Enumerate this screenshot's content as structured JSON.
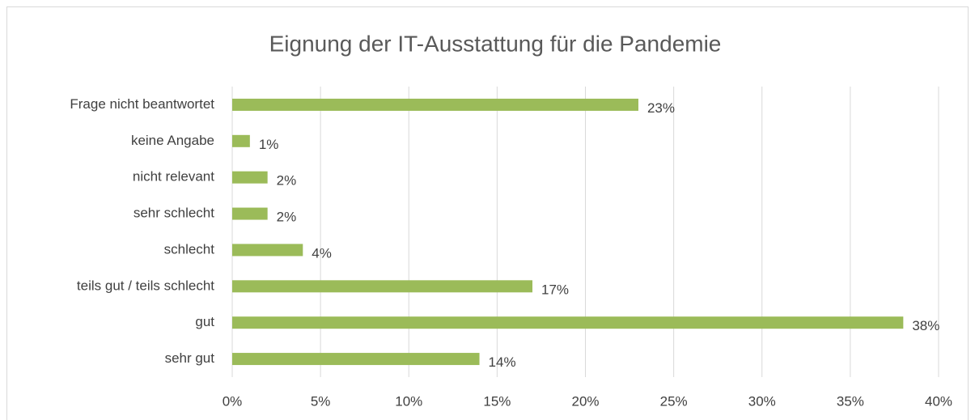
{
  "chart_data": {
    "type": "bar",
    "orientation": "horizontal",
    "title": "Eignung der IT-Ausstattung für die Pandemie",
    "categories": [
      "Frage nicht beantwortet",
      "keine Angabe",
      "nicht relevant",
      "sehr schlecht",
      "schlecht",
      "teils gut / teils schlecht",
      "gut",
      "sehr gut"
    ],
    "values": [
      23,
      1,
      2,
      2,
      4,
      17,
      38,
      14
    ],
    "value_labels": [
      "23%",
      "1%",
      "2%",
      "2%",
      "4%",
      "17%",
      "38%",
      "14%"
    ],
    "color": "#9bbb59",
    "xlim": [
      0,
      40
    ],
    "xticks": [
      {
        "value": 0,
        "label": "0%"
      },
      {
        "value": 5,
        "label": "5%"
      },
      {
        "value": 10,
        "label": "10%"
      },
      {
        "value": 15,
        "label": "15%"
      },
      {
        "value": 20,
        "label": "20%"
      },
      {
        "value": 25,
        "label": "25%"
      },
      {
        "value": 30,
        "label": "30%"
      },
      {
        "value": 35,
        "label": "35%"
      },
      {
        "value": 40,
        "label": "40%"
      }
    ],
    "grid": true
  }
}
